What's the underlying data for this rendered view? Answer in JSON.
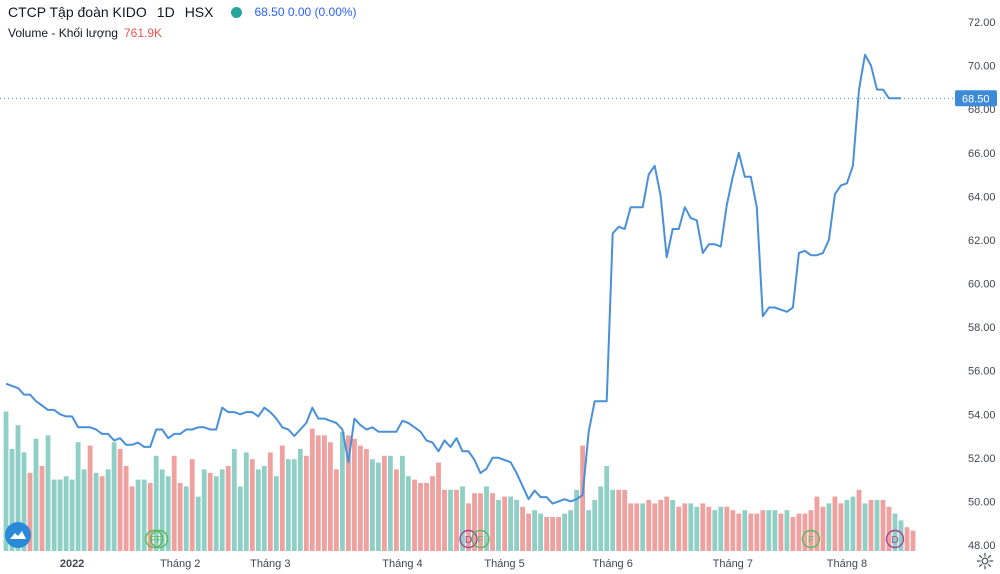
{
  "header": {
    "symbol_name": "CTCP Tập đoàn KIDO",
    "interval": "1D",
    "exchange": "HSX",
    "price_change": "68.50 0.00 (0.00%)",
    "volume_label": "Volume - Khối lượng",
    "volume_value": "761.9K"
  },
  "colors": {
    "line": "#4a90d9",
    "vol_up": "#90cfc5",
    "vol_down": "#efa1a0",
    "price_tag": "#3d8bd8",
    "grid_text": "#434651",
    "event_green": "#5cb85c",
    "event_purple": "#a0449c"
  },
  "chart_data": {
    "type": "line",
    "title": "CTCP Tập đoàn KIDO",
    "ylabel": "",
    "ylim": [
      47.5,
      73
    ],
    "yticks": [
      "72.00",
      "70.00",
      "68.00",
      "66.00",
      "64.00",
      "62.00",
      "60.00",
      "58.00",
      "56.00",
      "54.00",
      "52.00",
      "50.00",
      "48.00"
    ],
    "current_price": "68.50",
    "xticks": [
      "2022",
      "Tháng 2",
      "Tháng 3",
      "Tháng 4",
      "Tháng 5",
      "Tháng 6",
      "Tháng 7",
      "Tháng 8"
    ],
    "series": [
      {
        "values": [
          55.4,
          55.3,
          55.2,
          54.9,
          54.9,
          54.6,
          54.4,
          54.2,
          54.2,
          54.0,
          53.9,
          53.9,
          53.4,
          53.4,
          53.4,
          53.3,
          53.1,
          53.1,
          52.8,
          52.9,
          52.6,
          52.6,
          52.7,
          52.5,
          52.5,
          53.3,
          53.3,
          52.9,
          53.1,
          53.1,
          53.3,
          53.3,
          53.4,
          53.4,
          53.3,
          53.3,
          54.3,
          54.1,
          54.1,
          54.0,
          54.1,
          54.1,
          53.9,
          54.3,
          54.1,
          53.8,
          53.4,
          53.3,
          53.0,
          53.3,
          53.6,
          54.3,
          53.8,
          53.8,
          53.7,
          53.6,
          53.3,
          51.8,
          53.8,
          53.5,
          53.3,
          53.4,
          53.2,
          53.2,
          53.2,
          53.2,
          53.7,
          53.6,
          53.4,
          53.2,
          52.8,
          52.7,
          52.3,
          52.8,
          52.5,
          52.9,
          52.3,
          52.3,
          51.9,
          51.3,
          51.5,
          52.0,
          52.0,
          51.9,
          51.8,
          51.3,
          50.7,
          50.1,
          50.5,
          50.2,
          50.2,
          49.9,
          50.0,
          50.1,
          50.0,
          50.1,
          50.3,
          53.2,
          54.6,
          54.6,
          54.6,
          62.3,
          62.6,
          62.5,
          63.5,
          63.5,
          63.5,
          65.0,
          65.4,
          64.0,
          61.2,
          62.5,
          62.5,
          63.5,
          63.0,
          62.9,
          61.4,
          61.8,
          61.8,
          61.7,
          63.6,
          64.9,
          66.0,
          64.9,
          64.9,
          63.5,
          58.5,
          58.9,
          58.9,
          58.8,
          58.7,
          58.9,
          61.4,
          61.5,
          61.3,
          61.3,
          61.4,
          62.0,
          64.1,
          64.5,
          64.6,
          65.4,
          68.9,
          70.5,
          70.0,
          68.9,
          68.9,
          68.5,
          68.5,
          68.5
        ]
      },
      {
        "values": [
          4.1,
          3.0,
          3.7,
          2.9,
          2.3,
          3.3,
          2.5,
          3.4,
          2.1,
          2.1,
          2.2,
          2.1,
          3.2,
          2.4,
          3.1,
          2.3,
          2.2,
          2.4,
          3.2,
          3.0,
          2.5,
          1.9,
          2.1,
          2.1,
          2.0,
          2.8,
          2.4,
          2.2,
          2.8,
          2.0,
          1.9,
          2.7,
          1.6,
          2.4,
          2.3,
          2.2,
          2.4,
          2.5,
          3.0,
          1.9,
          2.9,
          2.7,
          2.4,
          2.5,
          2.9,
          2.2,
          3.1,
          2.7,
          2.7,
          3.0,
          2.8,
          3.6,
          3.4,
          3.4,
          3.2,
          2.4,
          3.5,
          3.4,
          3.3,
          3.1,
          3.0,
          2.7,
          2.6,
          2.8,
          2.8,
          2.4,
          2.8,
          2.2,
          2.1,
          2.0,
          2.0,
          2.2,
          2.6,
          1.8,
          1.8,
          1.8,
          1.9,
          1.4,
          1.7,
          1.7,
          1.9,
          1.7,
          1.5,
          1.6,
          1.6,
          1.5,
          1.3,
          1.1,
          1.2,
          1.1,
          1.0,
          1.0,
          1.0,
          1.1,
          1.2,
          1.8,
          3.1,
          1.2,
          1.5,
          1.9,
          2.5,
          1.8,
          1.8,
          1.8,
          1.4,
          1.4,
          1.4,
          1.5,
          1.4,
          1.5,
          1.6,
          1.5,
          1.3,
          1.4,
          1.4,
          1.3,
          1.4,
          1.3,
          1.2,
          1.3,
          1.3,
          1.2,
          1.1,
          1.2,
          1.1,
          1.1,
          1.2,
          1.2,
          1.2,
          1.1,
          1.2,
          1.0,
          1.1,
          1.1,
          1.2,
          1.6,
          1.3,
          1.4,
          1.6,
          1.4,
          1.5,
          1.6,
          1.8,
          1.4,
          1.5,
          1.5,
          1.5,
          1.3,
          1.1,
          0.9,
          0.7,
          0.6
        ]
      }
    ],
    "volume_up": [
      true,
      true,
      true,
      true,
      false,
      true,
      false,
      true,
      true,
      true,
      true,
      true,
      true,
      true,
      false,
      true,
      false,
      true,
      true,
      false,
      false,
      false,
      true,
      true,
      false,
      true,
      true,
      true,
      false,
      false,
      true,
      false,
      true,
      true,
      false,
      true,
      true,
      false,
      true,
      true,
      true,
      false,
      true,
      true,
      false,
      true,
      false,
      true,
      true,
      true,
      false,
      false,
      false,
      false,
      false,
      false,
      true,
      false,
      false,
      false,
      false,
      true,
      true,
      false,
      true,
      false,
      true,
      true,
      false,
      false,
      false,
      false,
      false,
      false,
      true,
      false,
      true,
      false,
      false,
      false,
      true,
      false,
      true,
      false,
      true,
      true,
      false,
      false,
      true,
      true,
      false,
      false,
      false,
      true,
      true,
      true,
      false,
      true,
      true,
      true,
      true,
      true,
      false,
      false,
      false,
      false,
      true,
      false,
      false,
      false,
      false,
      true,
      false,
      false,
      true,
      true,
      false,
      false,
      true,
      true,
      false,
      false,
      false,
      true,
      false,
      false,
      false,
      true,
      true,
      false,
      true,
      false,
      false,
      false,
      false,
      false,
      false,
      true,
      false,
      false,
      true,
      true,
      false,
      true,
      false,
      true,
      false,
      false,
      true,
      true,
      false,
      false
    ],
    "events": [
      {
        "label": "FF",
        "type": "F"
      },
      {
        "label": "D",
        "type": "D"
      },
      {
        "label": "F",
        "type": "F"
      },
      {
        "label": "F",
        "type": "F"
      },
      {
        "label": "D",
        "type": "D"
      }
    ]
  }
}
